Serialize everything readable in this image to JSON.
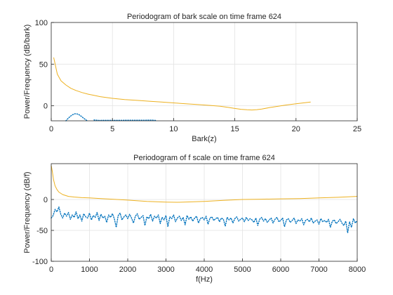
{
  "chart_data": [
    {
      "type": "line",
      "title": "Periodogram of bark scale on time frame 624",
      "xlabel": "Bark(z)",
      "ylabel": "Power/Frequency (dB/bark)",
      "xlim": [
        0,
        25
      ],
      "ylim": [
        -18,
        100
      ],
      "xticks": [
        0,
        5,
        10,
        15,
        20,
        25
      ],
      "yticks": [
        0,
        50,
        100
      ],
      "grid": true,
      "series": [
        {
          "style": "solid",
          "color": "#EDB120",
          "x": [
            0.2,
            0.5,
            0.8,
            1.2,
            1.6,
            2,
            2.5,
            3,
            3.5,
            4,
            5,
            6,
            7,
            8,
            9,
            10,
            11,
            12,
            13,
            13.8,
            14.5,
            15,
            15.5,
            16,
            16.4,
            16.8,
            17.2,
            17.8,
            18.5,
            19.2,
            20,
            21.2
          ],
          "y": [
            58,
            38,
            30,
            25,
            21,
            18.5,
            16,
            14,
            12.5,
            11,
            9,
            7.5,
            6.5,
            5.5,
            4.5,
            3.5,
            2.5,
            1.5,
            0.5,
            -0.5,
            -2,
            -3.2,
            -4.2,
            -4.8,
            -5,
            -4.6,
            -3.8,
            -2.2,
            -0.6,
            1,
            2.5,
            4.5
          ]
        },
        {
          "style": "dotted",
          "color": "#0072BD",
          "x": [
            1.2,
            1.45,
            1.7,
            1.95,
            2.2,
            2.45,
            2.7,
            2.95
          ],
          "y": [
            -18,
            -14,
            -11,
            -9.5,
            -10,
            -12.5,
            -15.5,
            -18
          ]
        },
        {
          "style": "dotted",
          "color": "#0072BD",
          "x": [
            3.5,
            3.9,
            8.3,
            8.6
          ],
          "y": [
            -17,
            -17.5,
            -17.2,
            -17.6
          ]
        }
      ]
    },
    {
      "type": "line",
      "title": "Periodogram of f scale on time frame 624",
      "xlabel": "f(Hz)",
      "ylabel": "Power/Frequency (dB/f)",
      "xlim": [
        0,
        8000
      ],
      "ylim": [
        -100,
        58
      ],
      "xticks": [
        0,
        1000,
        2000,
        3000,
        4000,
        5000,
        6000,
        7000,
        8000
      ],
      "yticks": [
        -100,
        -50,
        0
      ],
      "grid": true,
      "series": [
        {
          "style": "solid",
          "color": "#EDB120",
          "x": [
            0,
            30,
            60,
            100,
            150,
            200,
            300,
            450,
            600,
            800,
            1000,
            1300,
            1600,
            2000,
            2500,
            3000,
            3300,
            3600,
            4000,
            4500,
            5000,
            5500,
            6000,
            6500,
            7000,
            7500,
            8000
          ],
          "y": [
            55,
            45,
            32,
            22,
            16,
            12,
            8,
            5,
            4,
            3,
            2.5,
            1.5,
            0.5,
            -1,
            -3,
            -4.2,
            -4.5,
            -4,
            -3,
            -1.5,
            0,
            0.5,
            1,
            1.5,
            2.5,
            3.5,
            5
          ]
        },
        {
          "style": "dotted",
          "color": "#0072BD",
          "x": [
            0,
            50,
            100,
            150,
            200,
            250,
            300,
            350,
            400,
            450,
            500,
            550,
            600,
            650,
            700,
            750,
            800,
            850,
            900,
            950,
            1000,
            1050,
            1100,
            1150,
            1200,
            1250,
            1300,
            1350,
            1400,
            1450,
            1500,
            1550,
            1600,
            1650,
            1700,
            1750,
            1800,
            1850,
            1900,
            1950,
            2000,
            2050,
            2100,
            2150,
            2200,
            2250,
            2300,
            2350,
            2400,
            2450,
            2500,
            2550,
            2600,
            2650,
            2700,
            2750,
            2800,
            2850,
            2900,
            2950,
            3000,
            3050,
            3100,
            3150,
            3200,
            3250,
            3300,
            3350,
            3400,
            3450,
            3500,
            3550,
            3600,
            3650,
            3700,
            3750,
            3800,
            3850,
            3900,
            3950,
            4000,
            4050,
            4100,
            4150,
            4200,
            4250,
            4300,
            4350,
            4400,
            4450,
            4500,
            4550,
            4600,
            4650,
            4700,
            4750,
            4800,
            4850,
            4900,
            4950,
            5000,
            5050,
            5100,
            5150,
            5200,
            5250,
            5300,
            5350,
            5400,
            5450,
            5500,
            5550,
            5600,
            5650,
            5700,
            5750,
            5800,
            5850,
            5900,
            5950,
            6000,
            6050,
            6100,
            6150,
            6200,
            6250,
            6300,
            6350,
            6400,
            6450,
            6500,
            6550,
            6600,
            6650,
            6700,
            6750,
            6800,
            6850,
            6900,
            6950,
            7000,
            7050,
            7100,
            7150,
            7200,
            7250,
            7300,
            7350,
            7400,
            7450,
            7500,
            7550,
            7600,
            7650,
            7700,
            7750,
            7800,
            7850,
            7900,
            7950,
            8000
          ],
          "y": [
            -30,
            -26,
            -16,
            -20,
            -12,
            -24,
            -30,
            -22,
            -27,
            -21,
            -32,
            -25,
            -29,
            -20,
            -31,
            -25,
            -35,
            -23,
            -28,
            -30,
            -22,
            -33,
            -26,
            -29,
            -21,
            -34,
            -24,
            -30,
            -27,
            -37,
            -25,
            -29,
            -23,
            -31,
            -45,
            -26,
            -22,
            -33,
            -28,
            -25,
            -31,
            -24,
            -30,
            -38,
            -27,
            -23,
            -32,
            -29,
            -26,
            -42,
            -28,
            -31,
            -24,
            -35,
            -27,
            -30,
            -25,
            -39,
            -29,
            -33,
            -26,
            -44,
            -28,
            -31,
            -25,
            -36,
            -30,
            -27,
            -34,
            -29,
            -41,
            -26,
            -32,
            -28,
            -35,
            -30,
            -27,
            -38,
            -31,
            -29,
            -33,
            -27,
            -40,
            -30,
            -28,
            -34,
            -31,
            -29,
            -36,
            -30,
            -32,
            -43,
            -29,
            -33,
            -30,
            -38,
            -31,
            -28,
            -35,
            -32,
            -30,
            -36,
            -29,
            -34,
            -31,
            -33,
            -37,
            -30,
            -42,
            -32,
            -29,
            -35,
            -31,
            -37,
            -33,
            -30,
            -38,
            -32,
            -29,
            -36,
            -34,
            -30,
            -44,
            -33,
            -31,
            -37,
            -34,
            -30,
            -39,
            -33,
            -35,
            -31,
            -41,
            -34,
            -32,
            -36,
            -30,
            -38,
            -35,
            -33,
            -40,
            -31,
            -36,
            -34,
            -37,
            -32,
            -45,
            -35,
            -33,
            -39,
            -36,
            -32,
            -38,
            -42,
            -35,
            -54,
            -36,
            -45,
            -31,
            -38,
            -34
          ]
        }
      ]
    }
  ]
}
